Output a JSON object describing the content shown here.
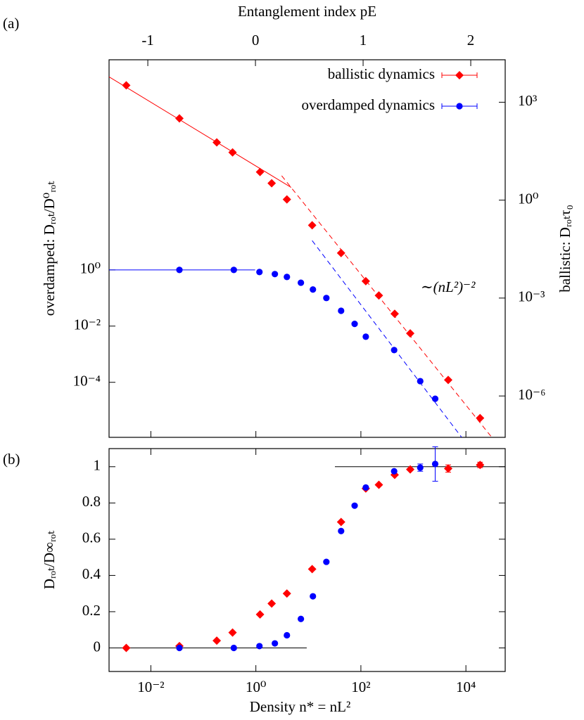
{
  "chart_data": [
    {
      "type": "scatter",
      "panel_label": "(a)",
      "x2label": "Entanglement index pE",
      "x2lim": [
        -1.36,
        2.32
      ],
      "x2ticks": [
        -1,
        0,
        1,
        2
      ],
      "ylabel": "overdamped: Dᵣₒₜ/D⁰ᵣₒₜ",
      "y2label": "ballistic: Dᵣₒₜτ₀",
      "xscale": "log",
      "xlim": [
        0.0016,
        56000
      ],
      "xticks": [
        0.01,
        1,
        100,
        10000
      ],
      "show_xtick_labels": false,
      "yscale": "log",
      "ylim": [
        1.1e-06,
        30000000.0
      ],
      "yticks": [
        {
          "value": 0.0001,
          "label": "10⁻⁴"
        },
        {
          "value": 0.01,
          "label": "10⁻²"
        },
        {
          "value": 1,
          "label": "10⁰"
        }
      ],
      "y2scale": "log",
      "y2lim": [
        5.4e-08,
        20000.0
      ],
      "y2ticks": [
        {
          "value": 1e-06,
          "label": "10⁻⁶"
        },
        {
          "value": 0.001,
          "label": "10⁻³"
        },
        {
          "value": 1,
          "label": "10⁰"
        },
        {
          "value": 1000,
          "label": "10³"
        }
      ],
      "legend": "top-right",
      "annotation": "∼(nL²)⁻²",
      "series": [
        {
          "name": "ballistic dynamics",
          "color": "#ff0000",
          "marker": "diamond",
          "axis": "y2",
          "x": [
            0.0034,
            0.035,
            0.18,
            0.36,
            1.2,
            2.0,
            3.9,
            11.8,
            42,
            124,
            220,
            440,
            870,
            4600,
            18600
          ],
          "values": [
            3300,
            320,
            59,
            29,
            7.3,
            3.3,
            1.05,
            0.17,
            0.024,
            0.0033,
            0.0012,
            0.00033,
            8.3e-05,
            3.1e-06,
            2.1e-07
          ]
        },
        {
          "name": "overdamped dynamics",
          "color": "#0000ff",
          "marker": "circle",
          "x": [
            0.035,
            0.38,
            1.17,
            2.3,
            3.9,
            7.2,
            12.2,
            22,
            42,
            76,
            124,
            430,
            1350,
            2600
          ],
          "values": [
            1.0,
            1.0,
            0.84,
            0.71,
            0.56,
            0.35,
            0.2,
            0.1,
            0.035,
            0.012,
            0.0042,
            0.0014,
            0.00011,
            2.6e-05
          ]
        }
      ],
      "fits": [
        {
          "color": "#ff0000",
          "dashed": false,
          "axis": "y2",
          "x": [
            0.0016,
            4.7
          ],
          "values": [
            6000,
            2.45
          ]
        },
        {
          "color": "#ff0000",
          "dashed": true,
          "axis": "y2",
          "x": [
            3.1,
            33000
          ],
          "values": [
            5.6,
            4.8e-08
          ]
        },
        {
          "color": "#0000ff",
          "dashed": false,
          "x": [
            0.0016,
            0.97
          ],
          "values": [
            1,
            1
          ]
        },
        {
          "color": "#0000ff",
          "dashed": true,
          "x": [
            11.8,
            8300
          ],
          "values": [
            11,
            1.1e-06
          ]
        }
      ]
    },
    {
      "type": "scatter",
      "panel_label": "(b)",
      "xlabel": "Density n* = nL²",
      "ylabel": "Dᵣₒₜ/D∞ᵣₒₜ",
      "xscale": "log",
      "xlim": [
        0.0016,
        56000
      ],
      "xticks": [
        {
          "value": 0.01,
          "label": "10⁻²"
        },
        {
          "value": 1,
          "label": "10⁰"
        },
        {
          "value": 100,
          "label": "10²"
        },
        {
          "value": 10000,
          "label": "10⁴"
        }
      ],
      "show_xtick_labels": true,
      "yscale": "linear",
      "ylim": [
        -0.13,
        1.1
      ],
      "yticks": [
        0,
        0.2,
        0.4,
        0.6,
        0.8,
        1
      ],
      "reference_lines": [
        {
          "value": 0,
          "x": [
            0.0016,
            9.3
          ]
        },
        {
          "value": 1,
          "x": [
            32,
            56000
          ]
        }
      ],
      "reference_color": "#000000",
      "series": [
        {
          "name": "ballistic dynamics",
          "color": "#ff0000",
          "marker": "diamond",
          "x": [
            0.0034,
            0.035,
            0.18,
            0.36,
            1.2,
            2.0,
            3.9,
            11.8,
            42,
            124,
            220,
            440,
            870,
            4600,
            18600
          ],
          "values": [
            0.0,
            0.01,
            0.04,
            0.085,
            0.185,
            0.245,
            0.3,
            0.435,
            0.695,
            0.88,
            0.9,
            0.955,
            0.985,
            0.99,
            1.01
          ],
          "errors": [
            null,
            null,
            null,
            null,
            null,
            null,
            null,
            null,
            null,
            null,
            null,
            null,
            null,
            0.02,
            0.015
          ]
        },
        {
          "name": "overdamped dynamics",
          "color": "#0000ff",
          "marker": "circle",
          "x": [
            0.035,
            0.38,
            1.17,
            2.3,
            3.9,
            7.2,
            12.2,
            22,
            42,
            76,
            124,
            430,
            1350,
            2600
          ],
          "values": [
            0.0,
            0.0,
            0.01,
            0.025,
            0.07,
            0.16,
            0.285,
            0.475,
            0.645,
            0.785,
            0.885,
            0.975,
            0.995,
            1.015
          ],
          "errors": [
            null,
            null,
            null,
            null,
            null,
            null,
            null,
            null,
            null,
            null,
            null,
            null,
            0.02,
            0.095
          ]
        }
      ]
    }
  ]
}
